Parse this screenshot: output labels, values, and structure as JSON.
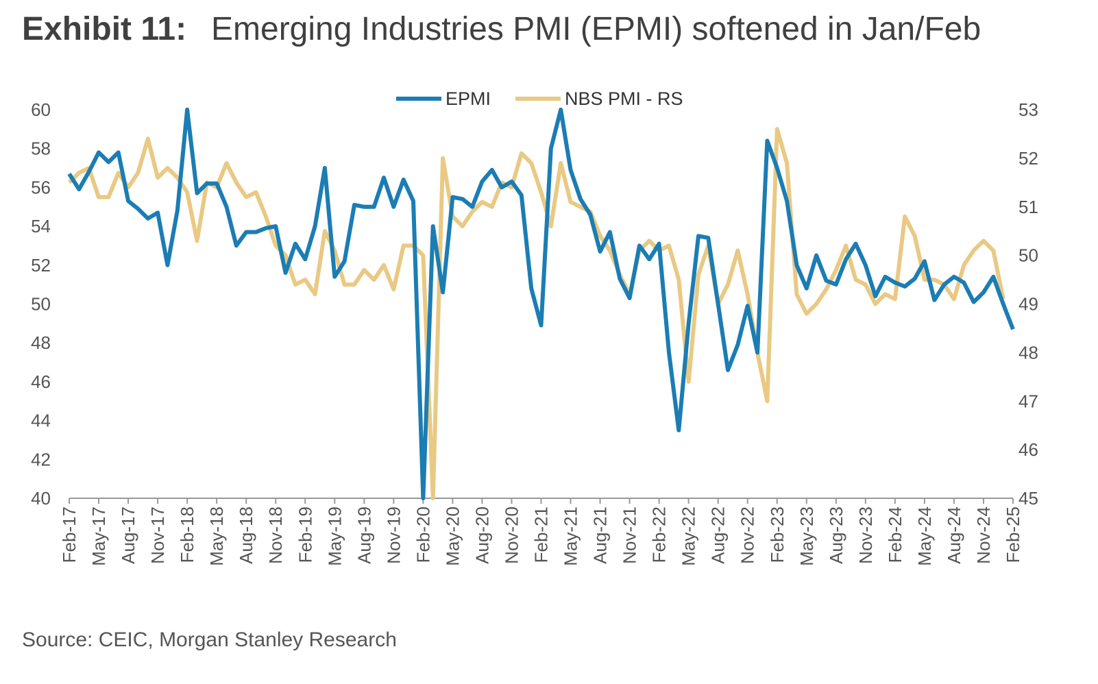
{
  "chart_data": {
    "type": "line",
    "title_prefix": "Exhibit 11:",
    "title": "Emerging Industries PMI (EPMI) softened in Jan/Feb",
    "source": "Source: CEIC, Morgan Stanley Research",
    "categories": [
      "Feb-17",
      null,
      null,
      "May-17",
      null,
      null,
      "Aug-17",
      null,
      null,
      "Nov-17",
      null,
      null,
      "Feb-18",
      null,
      null,
      "May-18",
      null,
      null,
      "Aug-18",
      null,
      null,
      "Nov-18",
      null,
      null,
      "Feb-19",
      null,
      null,
      "May-19",
      null,
      null,
      "Aug-19",
      null,
      null,
      "Nov-19",
      null,
      null,
      "Feb-20",
      null,
      null,
      "May-20",
      null,
      null,
      "Aug-20",
      null,
      null,
      "Nov-20",
      null,
      null,
      "Feb-21",
      null,
      null,
      "May-21",
      null,
      null,
      "Aug-21",
      null,
      null,
      "Nov-21",
      null,
      null,
      "Feb-22",
      null,
      null,
      "May-22",
      null,
      null,
      "Aug-22",
      null,
      null,
      "Nov-22",
      null,
      null,
      "Feb-23",
      null,
      null,
      "May-23",
      null,
      null,
      "Aug-23",
      null,
      null,
      "Nov-23",
      null,
      null,
      "Feb-24",
      null,
      null,
      "May-24",
      null,
      null,
      "Aug-24",
      null,
      null,
      "Nov-24",
      null,
      null,
      "Feb-25"
    ],
    "series": [
      {
        "name": "EPMI",
        "color": "#1b7db4",
        "values": [
          56.7,
          55.9,
          56.8,
          57.8,
          57.3,
          57.8,
          55.3,
          54.9,
          54.4,
          54.7,
          52.0,
          54.8,
          60.0,
          55.7,
          56.2,
          56.2,
          55.0,
          53.0,
          53.7,
          53.7,
          53.9,
          54.0,
          51.6,
          53.1,
          52.3,
          54.0,
          57.0,
          51.4,
          52.2,
          55.1,
          55.0,
          55.0,
          56.5,
          55.0,
          56.4,
          55.3,
          40.0,
          54.0,
          50.6,
          55.5,
          55.4,
          55.0,
          56.3,
          56.9,
          56.0,
          56.3,
          55.6,
          50.8,
          48.9,
          58.0,
          60.0,
          56.9,
          55.4,
          54.6,
          52.7,
          53.7,
          51.3,
          50.3,
          53.0,
          52.3,
          53.1,
          47.5,
          43.5,
          49.0,
          53.5,
          53.4,
          50.0,
          46.6,
          47.9,
          49.9,
          47.5,
          58.4,
          57.0,
          55.3,
          52.0,
          50.8,
          52.5,
          51.2,
          51.0,
          52.3,
          53.1,
          52.0,
          50.4,
          51.4,
          51.1,
          50.9,
          51.3,
          52.2,
          50.2,
          51.0,
          51.4,
          51.1,
          50.1,
          50.6,
          51.4,
          50.0,
          48.7
        ]
      },
      {
        "name": "NBS PMI - RS",
        "color": "#e9c983",
        "axis": "y2",
        "values": [
          51.5,
          51.7,
          51.8,
          51.2,
          51.2,
          51.7,
          51.4,
          51.7,
          52.4,
          51.6,
          51.8,
          51.6,
          51.3,
          50.3,
          51.5,
          51.4,
          51.9,
          51.5,
          51.2,
          51.3,
          50.8,
          50.2,
          50.0,
          49.4,
          49.5,
          49.2,
          50.5,
          50.1,
          49.4,
          49.4,
          49.7,
          49.5,
          49.8,
          49.3,
          50.2,
          50.2,
          50.0,
          45.0,
          52.0,
          50.8,
          50.6,
          50.9,
          51.1,
          51.0,
          51.5,
          51.4,
          52.1,
          51.9,
          51.3,
          50.6,
          51.9,
          51.1,
          51.0,
          50.9,
          50.4,
          50.1,
          49.6,
          49.2,
          50.1,
          50.3,
          50.1,
          50.2,
          49.5,
          47.4,
          49.6,
          50.2,
          49.0,
          49.4,
          50.1,
          49.2,
          48.0,
          47.0,
          52.6,
          51.9,
          49.2,
          48.8,
          49.0,
          49.3,
          49.7,
          50.2,
          49.5,
          49.4,
          49.0,
          49.2,
          49.1,
          50.8,
          50.4,
          49.5,
          49.5,
          49.4,
          49.1,
          49.8,
          50.1,
          50.3,
          50.1,
          49.1,
          null
        ]
      }
    ],
    "ylim": [
      40,
      60
    ],
    "yticks": [
      40,
      42,
      44,
      46,
      48,
      50,
      52,
      54,
      56,
      58,
      60
    ],
    "y2lim": [
      45,
      53
    ],
    "y2ticks": [
      45,
      46,
      47,
      48,
      49,
      50,
      51,
      52,
      53
    ],
    "legend": "top"
  }
}
